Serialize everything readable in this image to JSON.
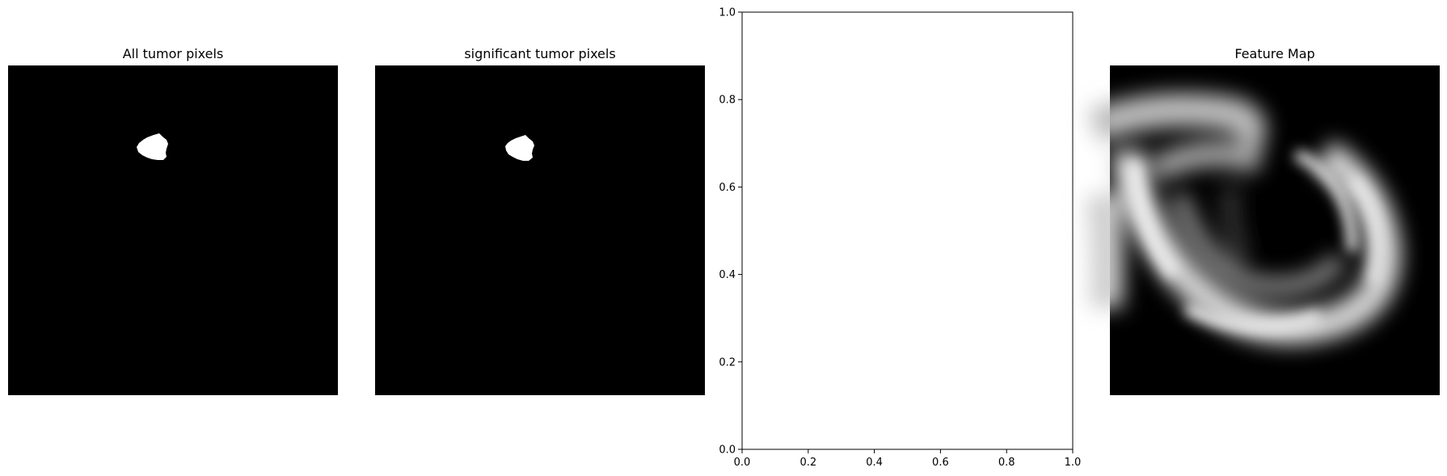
{
  "figure": {
    "panels": [
      {
        "title": "All tumor pixels",
        "kind": "mask"
      },
      {
        "title": "significant tumor pixels",
        "kind": "mask"
      },
      {
        "title": "",
        "kind": "empty-axes"
      },
      {
        "title": "Feature Map",
        "kind": "feature-map"
      }
    ]
  },
  "chart_data": [
    {
      "type": "heatmap",
      "title": "All tumor pixels",
      "colormap": "gray",
      "axis": "off",
      "content": "binary mask, single white blob in upper-left area"
    },
    {
      "type": "heatmap",
      "title": "significant tumor pixels",
      "colormap": "gray",
      "axis": "off",
      "content": "binary mask, single white blob in upper-left area"
    },
    {
      "type": "scatter",
      "title": "",
      "xlabel": "",
      "ylabel": "",
      "xlim": [
        0.0,
        1.0
      ],
      "ylim": [
        0.0,
        1.0
      ],
      "xticks": [
        "0.0",
        "0.2",
        "0.4",
        "0.6",
        "0.8",
        "1.0"
      ],
      "yticks": [
        "0.0",
        "0.2",
        "0.4",
        "0.6",
        "0.8",
        "1.0"
      ],
      "series": [],
      "grid": false
    },
    {
      "type": "heatmap",
      "title": "Feature Map",
      "colormap": "gray",
      "axis": "off",
      "content": "blurred ring-shaped intensity pattern"
    }
  ]
}
